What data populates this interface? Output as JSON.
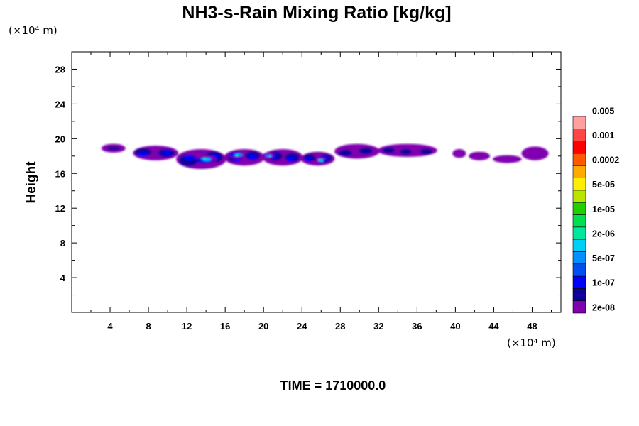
{
  "chart_data": {
    "type": "heatmap",
    "title": "NH3-s-Rain Mixing Ratio [kg/kg]",
    "xlabel": "",
    "ylabel": "Height",
    "x_unit_label": "(×10⁴ m)",
    "y_unit_label": "(×10⁴ m)",
    "xlim": [
      0,
      51
    ],
    "ylim": [
      0,
      30
    ],
    "xticks": [
      4,
      8,
      12,
      16,
      20,
      24,
      28,
      32,
      36,
      40,
      44,
      48
    ],
    "yticks": [
      4,
      8,
      12,
      16,
      20,
      24,
      28
    ],
    "grid": false,
    "colorbar": {
      "colors": [
        "#8000b0",
        "#10009a",
        "#0000ff",
        "#0050f0",
        "#0090ff",
        "#00d0f8",
        "#00e8a0",
        "#00e050",
        "#20d000",
        "#b8e600",
        "#ffee00",
        "#ffaa00",
        "#ff5a00",
        "#ff0000",
        "#ff4646",
        "#ffa0a0"
      ],
      "labels": [
        "2e-08",
        "1e-07",
        "5e-07",
        "2e-06",
        "1e-05",
        "5e-05",
        "0.0002",
        "0.001",
        "0.005"
      ],
      "label_levels": [
        0,
        2,
        4,
        6,
        8,
        10,
        12,
        14,
        16
      ]
    },
    "regions": [
      {
        "x": [
          3.2,
          5.5
        ],
        "y": [
          18.5,
          19.3
        ],
        "level": 1
      },
      {
        "x": [
          6.5,
          11.0
        ],
        "y": [
          17.6,
          19.1
        ],
        "level": 2
      },
      {
        "x": [
          11.0,
          16.0
        ],
        "y": [
          16.6,
          18.7
        ],
        "level": 2
      },
      {
        "x": [
          16.0,
          20.0
        ],
        "y": [
          17.0,
          18.7
        ],
        "level": 2
      },
      {
        "x": [
          20.0,
          24.0
        ],
        "y": [
          17.0,
          18.7
        ],
        "level": 2
      },
      {
        "x": [
          24.0,
          27.3
        ],
        "y": [
          17.0,
          18.4
        ],
        "level": 2
      },
      {
        "x": [
          13.0,
          15.0
        ],
        "y": [
          17.2,
          18.0
        ],
        "level": 6
      },
      {
        "x": [
          16.5,
          18.0
        ],
        "y": [
          17.8,
          18.5
        ],
        "level": 6
      },
      {
        "x": [
          20.0,
          21.0
        ],
        "y": [
          17.8,
          18.3
        ],
        "level": 5
      },
      {
        "x": [
          25.5,
          26.5
        ],
        "y": [
          17.2,
          17.8
        ],
        "level": 6
      },
      {
        "x": [
          27.5,
          32.0
        ],
        "y": [
          17.8,
          19.3
        ],
        "level": 1
      },
      {
        "x": [
          32.0,
          38.0
        ],
        "y": [
          18.0,
          19.3
        ],
        "level": 1
      },
      {
        "x": [
          39.8,
          41.0
        ],
        "y": [
          17.9,
          18.7
        ],
        "level": 0
      },
      {
        "x": [
          41.5,
          43.5
        ],
        "y": [
          17.6,
          18.4
        ],
        "level": 0
      },
      {
        "x": [
          44.0,
          46.8
        ],
        "y": [
          17.3,
          18.0
        ],
        "level": 0
      },
      {
        "x": [
          47.0,
          49.6
        ],
        "y": [
          17.6,
          19.0
        ],
        "level": 0
      }
    ]
  },
  "footer": {
    "time_label": "TIME = 1710000.0"
  }
}
